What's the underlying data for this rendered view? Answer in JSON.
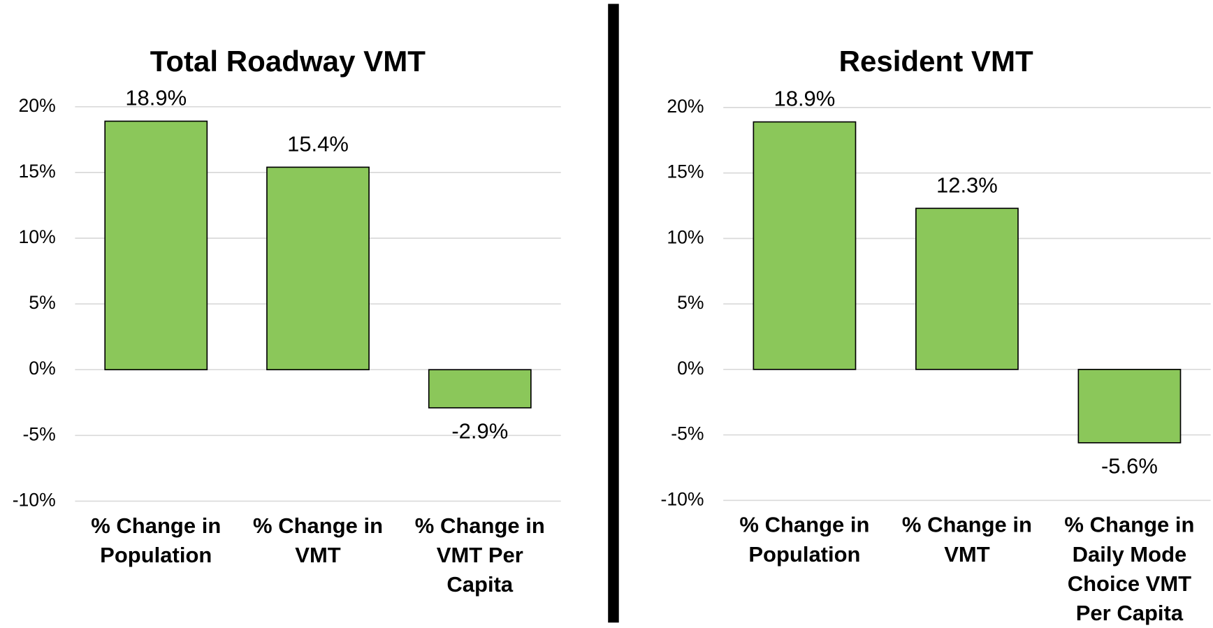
{
  "chart_data": [
    {
      "type": "bar",
      "title": "Total Roadway VMT",
      "categories": [
        "% Change in Population",
        "% Change in VMT",
        "% Change in VMT Per Capita"
      ],
      "values": [
        18.9,
        15.4,
        -2.9
      ],
      "value_labels": [
        "18.9%",
        "15.4%",
        "-2.9%"
      ],
      "color": "#8bc75a",
      "ylim": [
        -10,
        20
      ],
      "yticks": [
        {
          "value": -10,
          "label": "-10%"
        },
        {
          "value": -5,
          "label": "-5%"
        },
        {
          "value": 0,
          "label": "0%"
        },
        {
          "value": 5,
          "label": "5%"
        },
        {
          "value": 10,
          "label": "10%"
        },
        {
          "value": 15,
          "label": "15%"
        },
        {
          "value": 20,
          "label": "20%"
        }
      ],
      "grid": true
    },
    {
      "type": "bar",
      "title": "Resident VMT",
      "categories": [
        "% Change in Population",
        "% Change in VMT",
        "% Change in Daily Mode Choice VMT Per Capita"
      ],
      "values": [
        18.9,
        12.3,
        -5.6
      ],
      "value_labels": [
        "18.9%",
        "12.3%",
        "-5.6%"
      ],
      "color": "#8bc75a",
      "ylim": [
        -10,
        20
      ],
      "yticks": [
        {
          "value": -10,
          "label": "-10%"
        },
        {
          "value": -5,
          "label": "-5%"
        },
        {
          "value": 0,
          "label": "0%"
        },
        {
          "value": 5,
          "label": "5%"
        },
        {
          "value": 10,
          "label": "10%"
        },
        {
          "value": 15,
          "label": "15%"
        },
        {
          "value": 20,
          "label": "20%"
        }
      ],
      "grid": true
    }
  ]
}
